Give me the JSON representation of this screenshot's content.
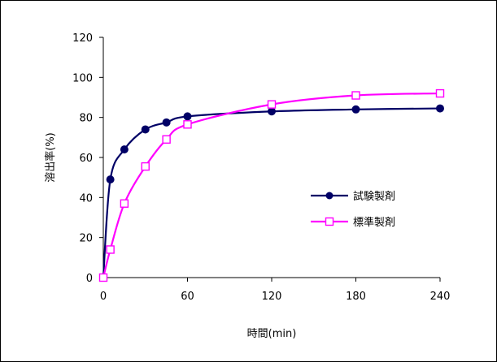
{
  "chart_data": {
    "type": "line",
    "title": "",
    "xlabel": "時間(min)",
    "ylabel": "溶出率(%)",
    "xlim": [
      0,
      240
    ],
    "ylim": [
      0,
      120
    ],
    "xticks": [
      0,
      60,
      120,
      180,
      240
    ],
    "yticks": [
      0,
      20,
      40,
      60,
      80,
      100,
      120
    ],
    "grid": false,
    "legend_position": "center-right",
    "series": [
      {
        "name": "試験製剤",
        "color": "#000066",
        "marker": "filled-circle",
        "x": [
          0,
          5,
          15,
          30,
          45,
          60,
          120,
          180,
          240
        ],
        "y": [
          0,
          49,
          64,
          74,
          77.5,
          80.5,
          83,
          84,
          84.5
        ]
      },
      {
        "name": "標準製剤",
        "color": "#ff00ff",
        "marker": "open-square",
        "x": [
          0,
          5,
          15,
          30,
          45,
          60,
          120,
          180,
          240
        ],
        "y": [
          0,
          14,
          37,
          55.5,
          69,
          76.5,
          86.5,
          91,
          92
        ]
      }
    ]
  }
}
